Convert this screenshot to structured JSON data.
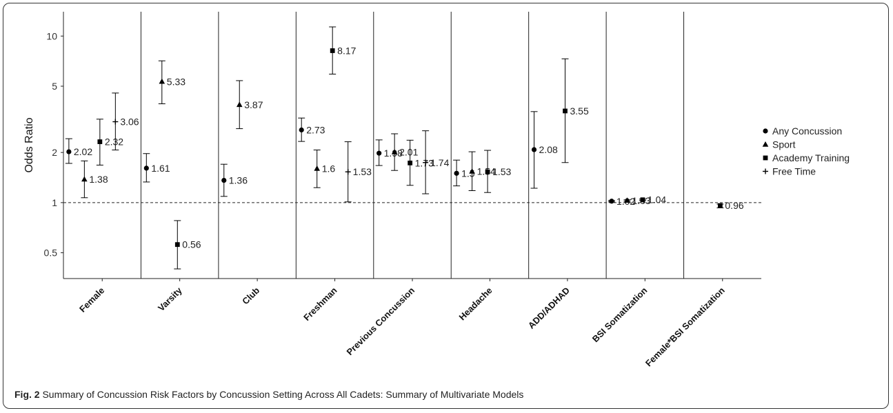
{
  "chart_data": {
    "type": "scatter",
    "ylabel": "Odds Ratio",
    "yscale": "log",
    "ylim": [
      0.35,
      14
    ],
    "yticks": [
      0.5,
      1,
      2,
      5,
      10
    ],
    "ytick_labels": [
      "0.5",
      "1",
      "2",
      "5",
      "10"
    ],
    "reference_line": 1,
    "categories": [
      "Female",
      "Varsity",
      "Club",
      "Freshman",
      "Previous Concussion",
      "Headache",
      "ADD/ADHAD",
      "BSI Somatization",
      "Female*BSI Somatization"
    ],
    "legend_position": "right",
    "series": [
      {
        "name": "Any Concussion",
        "marker": "circle",
        "points": [
          {
            "category": "Female",
            "value": 2.02,
            "label": "2.02",
            "ci": [
              1.72,
              2.42
            ]
          },
          {
            "category": "Varsity",
            "value": 1.61,
            "label": "1.61",
            "ci": [
              1.33,
              1.97
            ]
          },
          {
            "category": "Club",
            "value": 1.36,
            "label": "1.36",
            "ci": [
              1.09,
              1.7
            ]
          },
          {
            "category": "Freshman",
            "value": 2.73,
            "label": "2.73",
            "ci": [
              2.33,
              3.22
            ]
          },
          {
            "category": "Previous Concussion",
            "value": 1.98,
            "label": "1.98",
            "ci": [
              1.67,
              2.38
            ]
          },
          {
            "category": "Headache",
            "value": 1.5,
            "label": "1.5",
            "ci": [
              1.26,
              1.8
            ]
          },
          {
            "category": "ADD/ADHAD",
            "value": 2.08,
            "label": "2.08",
            "ci": [
              1.22,
              3.52
            ]
          },
          {
            "category": "BSI Somatization",
            "value": 1.02,
            "label": "1.02",
            "ci": [
              1.01,
              1.03
            ]
          }
        ]
      },
      {
        "name": "Sport",
        "marker": "triangle",
        "points": [
          {
            "category": "Female",
            "value": 1.38,
            "label": "1.38",
            "ci": [
              1.07,
              1.78
            ]
          },
          {
            "category": "Varsity",
            "value": 5.33,
            "label": "5.33",
            "ci": [
              3.92,
              7.1
            ]
          },
          {
            "category": "Club",
            "value": 3.87,
            "label": "3.87",
            "ci": [
              2.78,
              5.4
            ]
          },
          {
            "category": "Freshman",
            "value": 1.6,
            "label": "1.6",
            "ci": [
              1.23,
              2.07
            ]
          },
          {
            "category": "Previous Concussion",
            "value": 2.01,
            "label": "2.01",
            "ci": [
              1.56,
              2.59
            ]
          },
          {
            "category": "Headache",
            "value": 1.54,
            "label": "1.54",
            "ci": [
              1.18,
              2.02
            ]
          },
          {
            "category": "BSI Somatization",
            "value": 1.03,
            "label": "1.03",
            "ci": [
              1.02,
              1.04
            ]
          }
        ]
      },
      {
        "name": "Academy Training",
        "marker": "square",
        "points": [
          {
            "category": "Female",
            "value": 2.32,
            "label": "2.32",
            "ci": [
              1.68,
              3.17
            ]
          },
          {
            "category": "Varsity",
            "value": 0.56,
            "label": "0.56",
            "ci": [
              0.4,
              0.78
            ]
          },
          {
            "category": "Freshman",
            "value": 8.17,
            "label": "8.17",
            "ci": [
              5.91,
              11.35
            ]
          },
          {
            "category": "Previous Concussion",
            "value": 1.73,
            "label": "1.73",
            "ci": [
              1.27,
              2.37
            ]
          },
          {
            "category": "Headache",
            "value": 1.53,
            "label": "1.53",
            "ci": [
              1.15,
              2.06
            ]
          },
          {
            "category": "ADD/ADHAD",
            "value": 3.55,
            "label": "3.55",
            "ci": [
              1.74,
              7.3
            ]
          },
          {
            "category": "BSI Somatization",
            "value": 1.04,
            "label": "1.04",
            "ci": [
              1.03,
              1.05
            ]
          },
          {
            "category": "Female*BSI Somatization",
            "value": 0.96,
            "label": "0.96",
            "ci": [
              0.93,
              0.98
            ]
          }
        ]
      },
      {
        "name": "Free Time",
        "marker": "plus",
        "points": [
          {
            "category": "Female",
            "value": 3.06,
            "label": "3.06",
            "ci": [
              2.07,
              4.55
            ]
          },
          {
            "category": "Freshman",
            "value": 1.53,
            "label": "1.53",
            "ci": [
              1.01,
              2.32
            ]
          },
          {
            "category": "Previous Concussion",
            "value": 1.74,
            "label": "1.74",
            "ci": [
              1.13,
              2.7
            ]
          }
        ]
      }
    ]
  },
  "caption": {
    "label": "Fig. 2",
    "text": "Summary of Concussion Risk Factors by Concussion Setting Across All Cadets: Summary of Multivariate Models"
  }
}
